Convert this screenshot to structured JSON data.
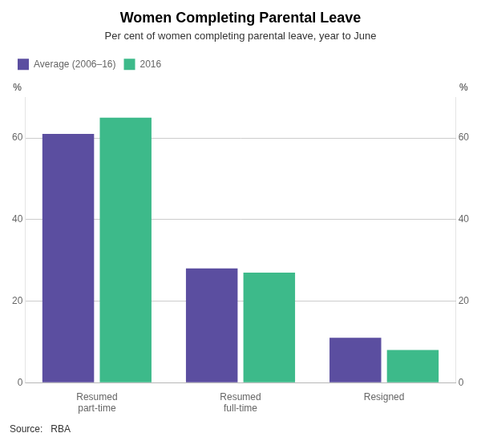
{
  "chart_data": {
    "type": "bar",
    "title": "Women Completing Parental Leave",
    "subtitle": "Per cent of women completing parental leave, year to June",
    "categories": [
      "Resumed\npart-time",
      "Resumed\nfull-time",
      "Resigned"
    ],
    "series": [
      {
        "name": "Average (2006–16)",
        "color": "#5b4ea0",
        "values": [
          61,
          28,
          11
        ]
      },
      {
        "name": "2016",
        "color": "#3dba8a",
        "values": [
          65,
          27,
          8
        ]
      }
    ],
    "ylim": [
      0,
      70
    ],
    "yticks": [
      0,
      20,
      40,
      60
    ],
    "y2lim": [
      0,
      70
    ],
    "y2ticks": [
      0,
      20,
      40,
      60
    ],
    "ylabel": "%",
    "y2label": "%",
    "source": "Source:   RBA",
    "grid": true,
    "legend": "upper left"
  }
}
